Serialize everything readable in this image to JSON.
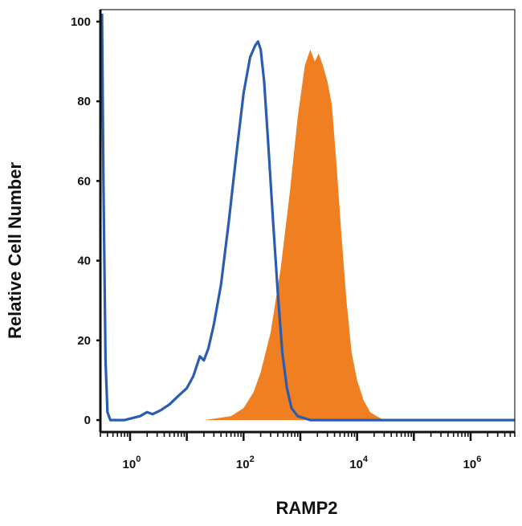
{
  "chart_data": {
    "type": "area",
    "title": "",
    "xlabel": "RAMP2",
    "ylabel": "Relative Cell Number",
    "x_scale": "log",
    "xlim": [
      0.3,
      6000000
    ],
    "ylim": [
      -3,
      103
    ],
    "y_ticks": [
      0,
      20,
      40,
      60,
      80,
      100
    ],
    "x_ticks": [
      {
        "value": 1,
        "base": "10",
        "exp": "0"
      },
      {
        "value": 100,
        "base": "10",
        "exp": "2"
      },
      {
        "value": 10000,
        "base": "10",
        "exp": "4"
      },
      {
        "value": 1000000,
        "base": "10",
        "exp": "6"
      }
    ],
    "grid": false,
    "legend": "none",
    "series": [
      {
        "style": "filled",
        "color": "#f07f22",
        "points": [
          [
            0.4,
            0
          ],
          [
            20,
            0
          ],
          [
            60,
            1
          ],
          [
            100,
            3
          ],
          [
            150,
            7
          ],
          [
            200,
            12
          ],
          [
            300,
            22
          ],
          [
            450,
            38
          ],
          [
            650,
            57
          ],
          [
            900,
            76
          ],
          [
            1200,
            89
          ],
          [
            1500,
            93
          ],
          [
            1800,
            90
          ],
          [
            2100,
            92
          ],
          [
            2500,
            89
          ],
          [
            3000,
            85
          ],
          [
            3600,
            79
          ],
          [
            4300,
            65
          ],
          [
            5200,
            48
          ],
          [
            6500,
            30
          ],
          [
            8000,
            17
          ],
          [
            10000,
            10
          ],
          [
            13000,
            5
          ],
          [
            17000,
            2
          ],
          [
            22000,
            1
          ],
          [
            30000,
            0
          ],
          [
            6000000,
            0
          ]
        ]
      },
      {
        "style": "line",
        "color": "#2a5db0",
        "points": [
          [
            0.32,
            102
          ],
          [
            0.34,
            60
          ],
          [
            0.37,
            15
          ],
          [
            0.4,
            2
          ],
          [
            0.45,
            0
          ],
          [
            0.8,
            0
          ],
          [
            1.5,
            1
          ],
          [
            2,
            2
          ],
          [
            2.5,
            1.5
          ],
          [
            3.5,
            2.5
          ],
          [
            5,
            4
          ],
          [
            7,
            6
          ],
          [
            10,
            8
          ],
          [
            13,
            11
          ],
          [
            17,
            16
          ],
          [
            20,
            15
          ],
          [
            24,
            18
          ],
          [
            30,
            24
          ],
          [
            40,
            34
          ],
          [
            55,
            50
          ],
          [
            75,
            67
          ],
          [
            100,
            82
          ],
          [
            130,
            91
          ],
          [
            160,
            94
          ],
          [
            180,
            95
          ],
          [
            200,
            93
          ],
          [
            230,
            85
          ],
          [
            270,
            70
          ],
          [
            330,
            50
          ],
          [
            400,
            32
          ],
          [
            480,
            17
          ],
          [
            580,
            8
          ],
          [
            700,
            3
          ],
          [
            900,
            1
          ],
          [
            1500,
            0
          ],
          [
            6000000,
            0
          ]
        ]
      }
    ]
  }
}
